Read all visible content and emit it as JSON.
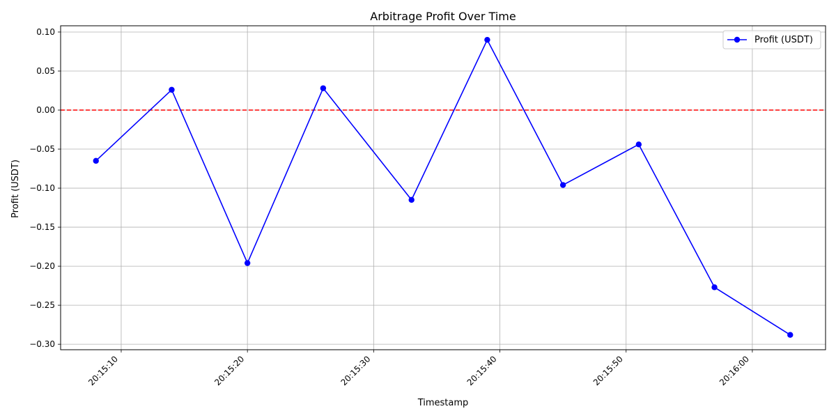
{
  "chart_data": {
    "type": "line",
    "title": "Arbitrage Profit Over Time",
    "xlabel": "Timestamp",
    "ylabel": "Profit (USDT)",
    "grid": true,
    "legend_position": "top-right",
    "x_unit": "time",
    "xlim": [
      "20:15:05.2",
      "20:16:05.8"
    ],
    "ylim": [
      -0.307,
      0.108
    ],
    "x_ticks": [
      "20:15:10",
      "20:15:20",
      "20:15:30",
      "20:15:40",
      "20:15:50",
      "20:16:00"
    ],
    "y_ticks": [
      {
        "value": 0.1,
        "label": "0.10"
      },
      {
        "value": 0.05,
        "label": "0.05"
      },
      {
        "value": 0.0,
        "label": "0.00"
      },
      {
        "value": -0.05,
        "label": "−0.05"
      },
      {
        "value": -0.1,
        "label": "−0.10"
      },
      {
        "value": -0.15,
        "label": "−0.15"
      },
      {
        "value": -0.2,
        "label": "−0.20"
      },
      {
        "value": -0.25,
        "label": "−0.25"
      },
      {
        "value": -0.3,
        "label": "−0.30"
      }
    ],
    "reference_line": {
      "y": 0,
      "color": "#ff0000",
      "style": "dashed"
    },
    "series": [
      {
        "name": "Profit (USDT)",
        "color": "#0000ff",
        "marker": "circle",
        "points": [
          {
            "x": "20:15:08",
            "y": -0.065
          },
          {
            "x": "20:15:14",
            "y": 0.026
          },
          {
            "x": "20:15:20",
            "y": -0.196
          },
          {
            "x": "20:15:26",
            "y": 0.028
          },
          {
            "x": "20:15:33",
            "y": -0.115
          },
          {
            "x": "20:15:39",
            "y": 0.09
          },
          {
            "x": "20:15:45",
            "y": -0.096
          },
          {
            "x": "20:15:51",
            "y": -0.044
          },
          {
            "x": "20:15:57",
            "y": -0.227
          },
          {
            "x": "20:16:03",
            "y": -0.288
          }
        ]
      }
    ]
  }
}
